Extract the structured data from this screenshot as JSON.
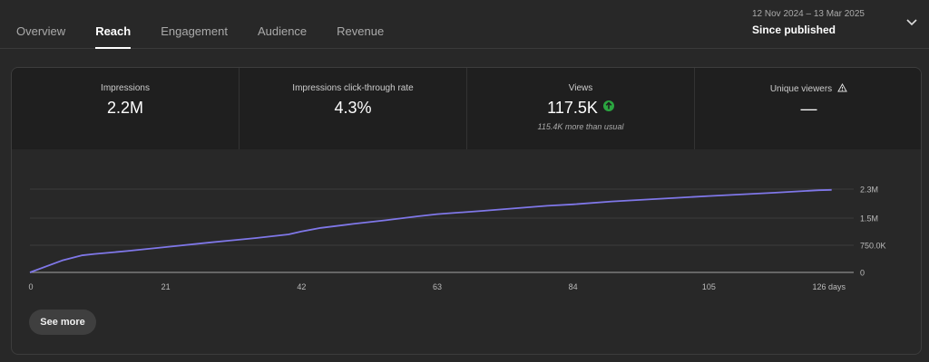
{
  "tabs": [
    {
      "label": "Overview"
    },
    {
      "label": "Reach"
    },
    {
      "label": "Engagement"
    },
    {
      "label": "Audience"
    },
    {
      "label": "Revenue"
    }
  ],
  "active_tab": "Reach",
  "date_range": {
    "dates": "12 Nov 2024 – 13 Mar 2025",
    "label": "Since published",
    "icon": "chevron-down-icon"
  },
  "metrics": [
    {
      "label": "Impressions",
      "value": "2.2M"
    },
    {
      "label": "Impressions click-through rate",
      "value": "4.3%"
    },
    {
      "label": "Views",
      "value": "117.5K",
      "sub": "115.4K more than usual",
      "trend_icon": "arrow-up-icon"
    },
    {
      "label": "Unique viewers",
      "value": "—",
      "warning_icon": "warning-icon"
    }
  ],
  "see_more_label": "See more",
  "colors": {
    "line": "#7f77e8",
    "up": "#2ba640",
    "background": "#282828"
  },
  "chart_data": {
    "type": "line",
    "x": [
      0,
      5,
      8,
      10,
      15,
      21,
      28,
      35,
      40,
      42,
      45,
      50,
      55,
      60,
      63,
      70,
      80,
      84,
      90,
      100,
      105,
      115,
      122,
      124
    ],
    "series": [
      {
        "values": [
          0,
          330000,
          470000,
          510000,
          590000,
          700000,
          830000,
          950000,
          1050000,
          1130000,
          1230000,
          1340000,
          1440000,
          1550000,
          1610000,
          1700000,
          1840000,
          1880000,
          1960000,
          2060000,
          2110000,
          2200000,
          2270000,
          2280000
        ]
      }
    ],
    "x_ticks": [
      "0",
      "21",
      "42",
      "63",
      "84",
      "105",
      "126 days"
    ],
    "y_ticks": [
      "0",
      "750.0K",
      "1.5M",
      "2.3M"
    ],
    "xlim": [
      0,
      126
    ],
    "ylim": [
      0,
      2300000
    ],
    "grid": true
  }
}
